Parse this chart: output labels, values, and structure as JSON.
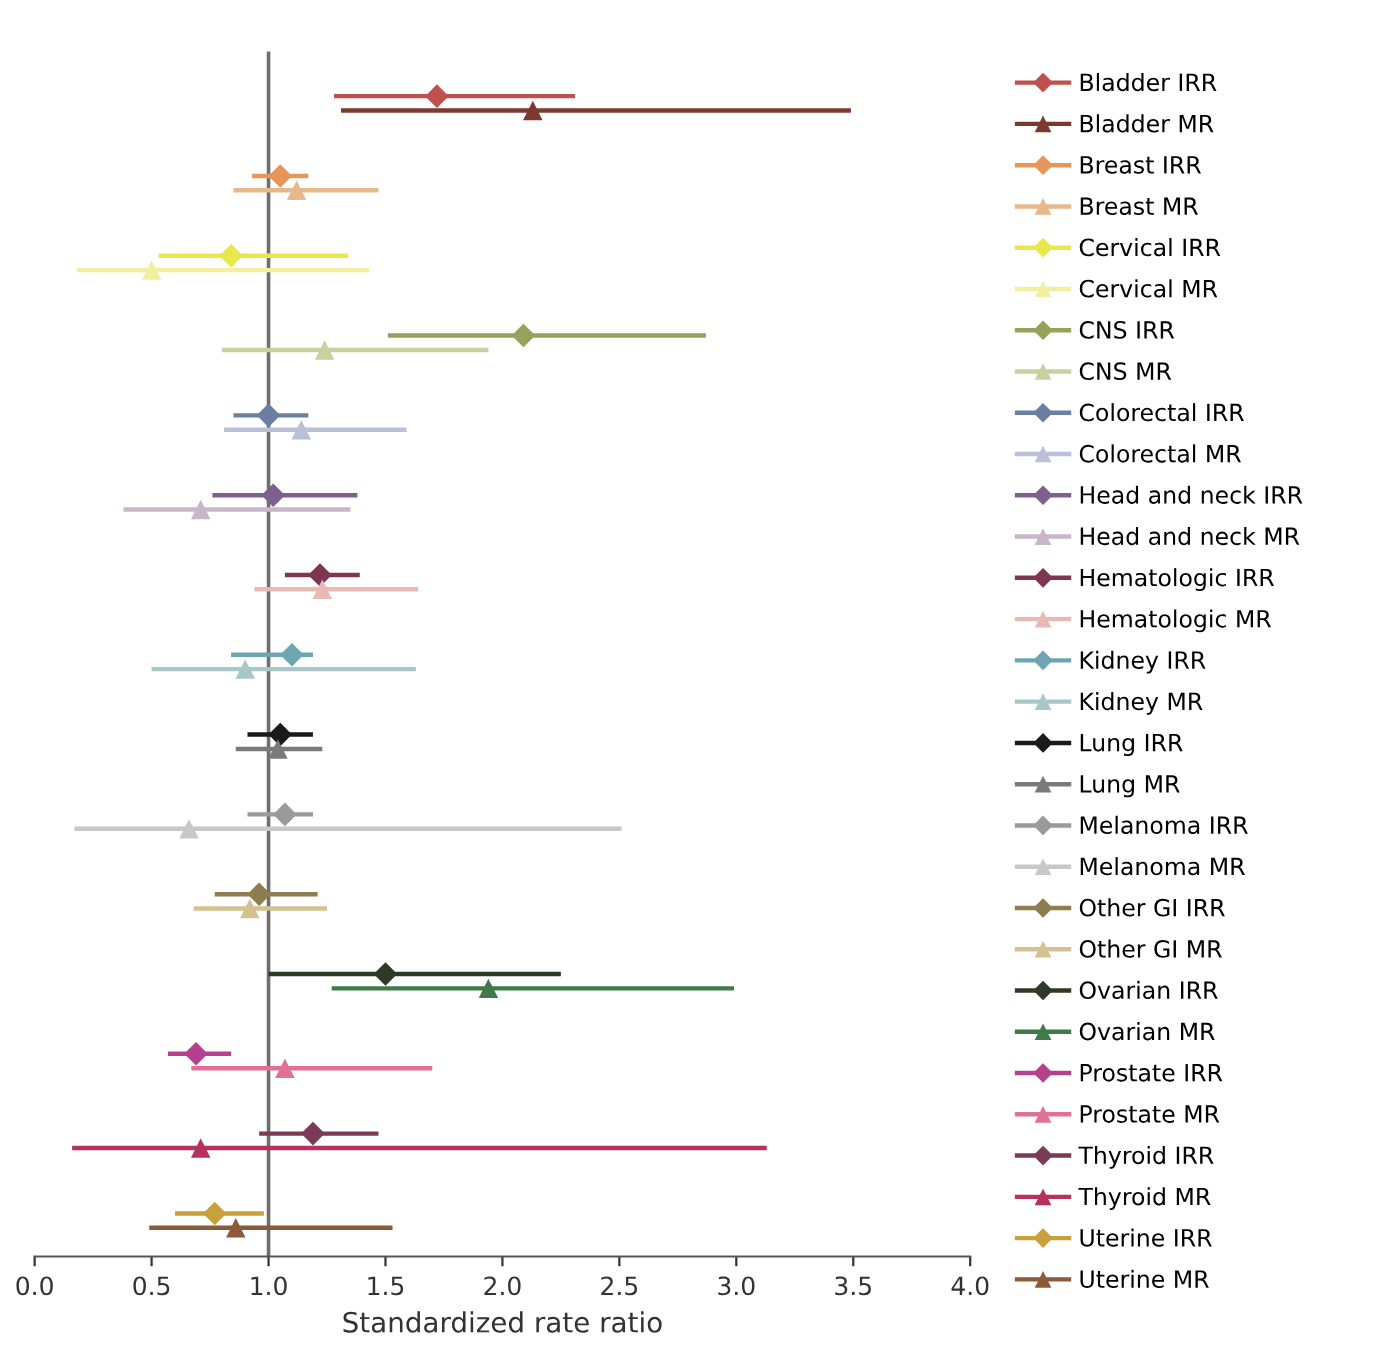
{
  "chart_data": {
    "type": "scatter",
    "orientation": "horizontal",
    "xlabel": "Standardized rate ratio",
    "categories": [
      null,
      null,
      null,
      null,
      null,
      null,
      null,
      null,
      null,
      null,
      null,
      null,
      null,
      null,
      null
    ],
    "xlim": [
      0,
      4
    ],
    "xticks": [
      {
        "value": 0,
        "label": "0.0"
      },
      0.5,
      {
        "value": 1,
        "label": "1.0"
      },
      1.5,
      {
        "value": 2,
        "label": "2.0"
      },
      2.5,
      {
        "value": 3,
        "label": "3.0"
      },
      3.5,
      {
        "value": 4,
        "label": "4.0"
      }
    ],
    "tick_labels": "x",
    "legend": "right",
    "grid": false,
    "ref_lines": [
      {
        "axis": "x",
        "value": 1,
        "color": "#6e6e6e",
        "line_style": "solid"
      }
    ],
    "series": [
      {
        "name": "Bladder IRR",
        "color": "#c0504d",
        "marker": "diamond",
        "values": [
          1.72,
          null,
          null,
          null,
          null,
          null,
          null,
          null,
          null,
          null,
          null,
          null,
          null,
          null,
          null
        ],
        "errors": [
          [
            1.28,
            2.31
          ],
          null,
          null,
          null,
          null,
          null,
          null,
          null,
          null,
          null,
          null,
          null,
          null,
          null,
          null
        ]
      },
      {
        "name": "Bladder MR",
        "color": "#7b3a2f",
        "marker": "triangle",
        "values": [
          2.13,
          null,
          null,
          null,
          null,
          null,
          null,
          null,
          null,
          null,
          null,
          null,
          null,
          null,
          null
        ],
        "errors": [
          [
            1.31,
            3.49
          ],
          null,
          null,
          null,
          null,
          null,
          null,
          null,
          null,
          null,
          null,
          null,
          null,
          null,
          null
        ]
      },
      {
        "name": "Breast IRR",
        "color": "#e8955a",
        "marker": "diamond",
        "values": [
          null,
          1.05,
          null,
          null,
          null,
          null,
          null,
          null,
          null,
          null,
          null,
          null,
          null,
          null,
          null
        ],
        "errors": [
          null,
          [
            0.93,
            1.17
          ],
          null,
          null,
          null,
          null,
          null,
          null,
          null,
          null,
          null,
          null,
          null,
          null,
          null
        ]
      },
      {
        "name": "Breast MR",
        "color": "#e6b98c",
        "marker": "triangle",
        "values": [
          null,
          1.12,
          null,
          null,
          null,
          null,
          null,
          null,
          null,
          null,
          null,
          null,
          null,
          null,
          null
        ],
        "errors": [
          null,
          [
            0.85,
            1.47
          ],
          null,
          null,
          null,
          null,
          null,
          null,
          null,
          null,
          null,
          null,
          null,
          null,
          null
        ]
      },
      {
        "name": "Cervical IRR",
        "color": "#e8e84a",
        "marker": "diamond",
        "values": [
          null,
          null,
          0.84,
          null,
          null,
          null,
          null,
          null,
          null,
          null,
          null,
          null,
          null,
          null,
          null
        ],
        "errors": [
          null,
          null,
          [
            0.53,
            1.34
          ],
          null,
          null,
          null,
          null,
          null,
          null,
          null,
          null,
          null,
          null,
          null,
          null
        ]
      },
      {
        "name": "Cervical MR",
        "color": "#f2f0a0",
        "marker": "triangle",
        "values": [
          null,
          null,
          0.5,
          null,
          null,
          null,
          null,
          null,
          null,
          null,
          null,
          null,
          null,
          null,
          null
        ],
        "errors": [
          null,
          null,
          [
            0.18,
            1.43
          ],
          null,
          null,
          null,
          null,
          null,
          null,
          null,
          null,
          null,
          null,
          null,
          null
        ]
      },
      {
        "name": "CNS IRR",
        "color": "#93a35a",
        "marker": "diamond",
        "values": [
          null,
          null,
          null,
          2.09,
          null,
          null,
          null,
          null,
          null,
          null,
          null,
          null,
          null,
          null,
          null
        ],
        "errors": [
          null,
          null,
          null,
          [
            1.51,
            2.87
          ],
          null,
          null,
          null,
          null,
          null,
          null,
          null,
          null,
          null,
          null,
          null
        ]
      },
      {
        "name": "CNS MR",
        "color": "#c9d0a0",
        "marker": "triangle",
        "values": [
          null,
          null,
          null,
          1.24,
          null,
          null,
          null,
          null,
          null,
          null,
          null,
          null,
          null,
          null,
          null
        ],
        "errors": [
          null,
          null,
          null,
          [
            0.8,
            1.94
          ],
          null,
          null,
          null,
          null,
          null,
          null,
          null,
          null,
          null,
          null,
          null
        ]
      },
      {
        "name": "Colorectal IRR",
        "color": "#6b7fa3",
        "marker": "diamond",
        "values": [
          null,
          null,
          null,
          null,
          1.0,
          null,
          null,
          null,
          null,
          null,
          null,
          null,
          null,
          null,
          null
        ],
        "errors": [
          null,
          null,
          null,
          null,
          [
            0.85,
            1.17
          ],
          null,
          null,
          null,
          null,
          null,
          null,
          null,
          null,
          null,
          null
        ]
      },
      {
        "name": "Colorectal MR",
        "color": "#b9c0d8",
        "marker": "triangle",
        "values": [
          null,
          null,
          null,
          null,
          1.14,
          null,
          null,
          null,
          null,
          null,
          null,
          null,
          null,
          null,
          null
        ],
        "errors": [
          null,
          null,
          null,
          null,
          [
            0.81,
            1.59
          ],
          null,
          null,
          null,
          null,
          null,
          null,
          null,
          null,
          null,
          null
        ]
      },
      {
        "name": "Head and neck IRR",
        "color": "#7e5f8e",
        "marker": "diamond",
        "values": [
          null,
          null,
          null,
          null,
          null,
          1.02,
          null,
          null,
          null,
          null,
          null,
          null,
          null,
          null,
          null
        ],
        "errors": [
          null,
          null,
          null,
          null,
          null,
          [
            0.76,
            1.38
          ],
          null,
          null,
          null,
          null,
          null,
          null,
          null,
          null,
          null
        ]
      },
      {
        "name": "Head and neck MR",
        "color": "#c9b6c9",
        "marker": "triangle",
        "values": [
          null,
          null,
          null,
          null,
          null,
          0.71,
          null,
          null,
          null,
          null,
          null,
          null,
          null,
          null,
          null
        ],
        "errors": [
          null,
          null,
          null,
          null,
          null,
          [
            0.38,
            1.35
          ],
          null,
          null,
          null,
          null,
          null,
          null,
          null,
          null,
          null
        ]
      },
      {
        "name": "Hematologic IRR",
        "color": "#7e3552",
        "marker": "diamond",
        "values": [
          null,
          null,
          null,
          null,
          null,
          null,
          1.22,
          null,
          null,
          null,
          null,
          null,
          null,
          null,
          null
        ],
        "errors": [
          null,
          null,
          null,
          null,
          null,
          null,
          [
            1.07,
            1.39
          ],
          null,
          null,
          null,
          null,
          null,
          null,
          null,
          null
        ]
      },
      {
        "name": "Hematologic MR",
        "color": "#e9b9b5",
        "marker": "triangle",
        "values": [
          null,
          null,
          null,
          null,
          null,
          null,
          1.23,
          null,
          null,
          null,
          null,
          null,
          null,
          null,
          null
        ],
        "errors": [
          null,
          null,
          null,
          null,
          null,
          null,
          [
            0.94,
            1.64
          ],
          null,
          null,
          null,
          null,
          null,
          null,
          null,
          null
        ]
      },
      {
        "name": "Kidney IRR",
        "color": "#6ea5b0",
        "marker": "diamond",
        "values": [
          null,
          null,
          null,
          null,
          null,
          null,
          null,
          1.1,
          null,
          null,
          null,
          null,
          null,
          null,
          null
        ],
        "errors": [
          null,
          null,
          null,
          null,
          null,
          null,
          null,
          [
            0.84,
            1.19
          ],
          null,
          null,
          null,
          null,
          null,
          null,
          null
        ]
      },
      {
        "name": "Kidney MR",
        "color": "#a8c8c8",
        "marker": "triangle",
        "values": [
          null,
          null,
          null,
          null,
          null,
          null,
          null,
          0.9,
          null,
          null,
          null,
          null,
          null,
          null,
          null
        ],
        "errors": [
          null,
          null,
          null,
          null,
          null,
          null,
          null,
          [
            0.5,
            1.63
          ],
          null,
          null,
          null,
          null,
          null,
          null,
          null
        ]
      },
      {
        "name": "Lung IRR",
        "color": "#1a1a1a",
        "marker": "diamond",
        "values": [
          null,
          null,
          null,
          null,
          null,
          null,
          null,
          null,
          1.05,
          null,
          null,
          null,
          null,
          null,
          null
        ],
        "errors": [
          null,
          null,
          null,
          null,
          null,
          null,
          null,
          null,
          [
            0.91,
            1.19
          ],
          null,
          null,
          null,
          null,
          null,
          null
        ]
      },
      {
        "name": "Lung MR",
        "color": "#7a7a7a",
        "marker": "triangle",
        "values": [
          null,
          null,
          null,
          null,
          null,
          null,
          null,
          null,
          1.04,
          null,
          null,
          null,
          null,
          null,
          null
        ],
        "errors": [
          null,
          null,
          null,
          null,
          null,
          null,
          null,
          null,
          [
            0.86,
            1.23
          ],
          null,
          null,
          null,
          null,
          null,
          null
        ]
      },
      {
        "name": "Melanoma IRR",
        "color": "#9a9a9a",
        "marker": "diamond",
        "values": [
          null,
          null,
          null,
          null,
          null,
          null,
          null,
          null,
          null,
          1.07,
          null,
          null,
          null,
          null,
          null
        ],
        "errors": [
          null,
          null,
          null,
          null,
          null,
          null,
          null,
          null,
          null,
          [
            0.91,
            1.19
          ],
          null,
          null,
          null,
          null,
          null
        ]
      },
      {
        "name": "Melanoma MR",
        "color": "#c8c8c8",
        "marker": "triangle",
        "values": [
          null,
          null,
          null,
          null,
          null,
          null,
          null,
          null,
          null,
          0.66,
          null,
          null,
          null,
          null,
          null
        ],
        "errors": [
          null,
          null,
          null,
          null,
          null,
          null,
          null,
          null,
          null,
          [
            0.17,
            2.51
          ],
          null,
          null,
          null,
          null,
          null
        ]
      },
      {
        "name": "Other GI IRR",
        "color": "#8e7d4e",
        "marker": "diamond",
        "values": [
          null,
          null,
          null,
          null,
          null,
          null,
          null,
          null,
          null,
          null,
          0.96,
          null,
          null,
          null,
          null
        ],
        "errors": [
          null,
          null,
          null,
          null,
          null,
          null,
          null,
          null,
          null,
          null,
          [
            0.77,
            1.21
          ],
          null,
          null,
          null,
          null
        ]
      },
      {
        "name": "Other GI MR",
        "color": "#d3c190",
        "marker": "triangle",
        "values": [
          null,
          null,
          null,
          null,
          null,
          null,
          null,
          null,
          null,
          null,
          0.92,
          null,
          null,
          null,
          null
        ],
        "errors": [
          null,
          null,
          null,
          null,
          null,
          null,
          null,
          null,
          null,
          null,
          [
            0.68,
            1.25
          ],
          null,
          null,
          null,
          null
        ]
      },
      {
        "name": "Ovarian IRR",
        "color": "#2e3a26",
        "marker": "diamond",
        "values": [
          null,
          null,
          null,
          null,
          null,
          null,
          null,
          null,
          null,
          null,
          null,
          1.5,
          null,
          null,
          null
        ],
        "errors": [
          null,
          null,
          null,
          null,
          null,
          null,
          null,
          null,
          null,
          null,
          null,
          [
            1.0,
            2.25
          ],
          null,
          null,
          null
        ]
      },
      {
        "name": "Ovarian MR",
        "color": "#3f7a4a",
        "marker": "triangle",
        "values": [
          null,
          null,
          null,
          null,
          null,
          null,
          null,
          null,
          null,
          null,
          null,
          1.94,
          null,
          null,
          null
        ],
        "errors": [
          null,
          null,
          null,
          null,
          null,
          null,
          null,
          null,
          null,
          null,
          null,
          [
            1.27,
            2.99
          ],
          null,
          null,
          null
        ]
      },
      {
        "name": "Prostate IRR",
        "color": "#b5408f",
        "marker": "diamond",
        "values": [
          null,
          null,
          null,
          null,
          null,
          null,
          null,
          null,
          null,
          null,
          null,
          null,
          0.69,
          null,
          null
        ],
        "errors": [
          null,
          null,
          null,
          null,
          null,
          null,
          null,
          null,
          null,
          null,
          null,
          null,
          [
            0.57,
            0.84
          ],
          null,
          null
        ]
      },
      {
        "name": "Prostate MR",
        "color": "#e07097",
        "marker": "triangle",
        "values": [
          null,
          null,
          null,
          null,
          null,
          null,
          null,
          null,
          null,
          null,
          null,
          null,
          1.07,
          null,
          null
        ],
        "errors": [
          null,
          null,
          null,
          null,
          null,
          null,
          null,
          null,
          null,
          null,
          null,
          null,
          [
            0.67,
            1.7
          ],
          null,
          null
        ]
      },
      {
        "name": "Thyroid IRR",
        "color": "#7b3a55",
        "marker": "diamond",
        "values": [
          null,
          null,
          null,
          null,
          null,
          null,
          null,
          null,
          null,
          null,
          null,
          null,
          null,
          1.19,
          null
        ],
        "errors": [
          null,
          null,
          null,
          null,
          null,
          null,
          null,
          null,
          null,
          null,
          null,
          null,
          null,
          [
            0.96,
            1.47
          ],
          null
        ]
      },
      {
        "name": "Thyroid MR",
        "color": "#b8305e",
        "marker": "triangle",
        "values": [
          null,
          null,
          null,
          null,
          null,
          null,
          null,
          null,
          null,
          null,
          null,
          null,
          null,
          0.71,
          null
        ],
        "errors": [
          null,
          null,
          null,
          null,
          null,
          null,
          null,
          null,
          null,
          null,
          null,
          null,
          null,
          [
            0.16,
            3.13
          ],
          null
        ]
      },
      {
        "name": "Uterine IRR",
        "color": "#c9a13a",
        "marker": "diamond",
        "values": [
          null,
          null,
          null,
          null,
          null,
          null,
          null,
          null,
          null,
          null,
          null,
          null,
          null,
          null,
          0.77
        ],
        "errors": [
          null,
          null,
          null,
          null,
          null,
          null,
          null,
          null,
          null,
          null,
          null,
          null,
          null,
          null,
          [
            0.6,
            0.98
          ]
        ]
      },
      {
        "name": "Uterine MR",
        "color": "#8a5a3a",
        "marker": "triangle",
        "values": [
          null,
          null,
          null,
          null,
          null,
          null,
          null,
          null,
          null,
          null,
          null,
          null,
          null,
          null,
          0.86
        ],
        "errors": [
          null,
          null,
          null,
          null,
          null,
          null,
          null,
          null,
          null,
          null,
          null,
          null,
          null,
          null,
          [
            0.49,
            1.53
          ]
        ]
      }
    ]
  }
}
